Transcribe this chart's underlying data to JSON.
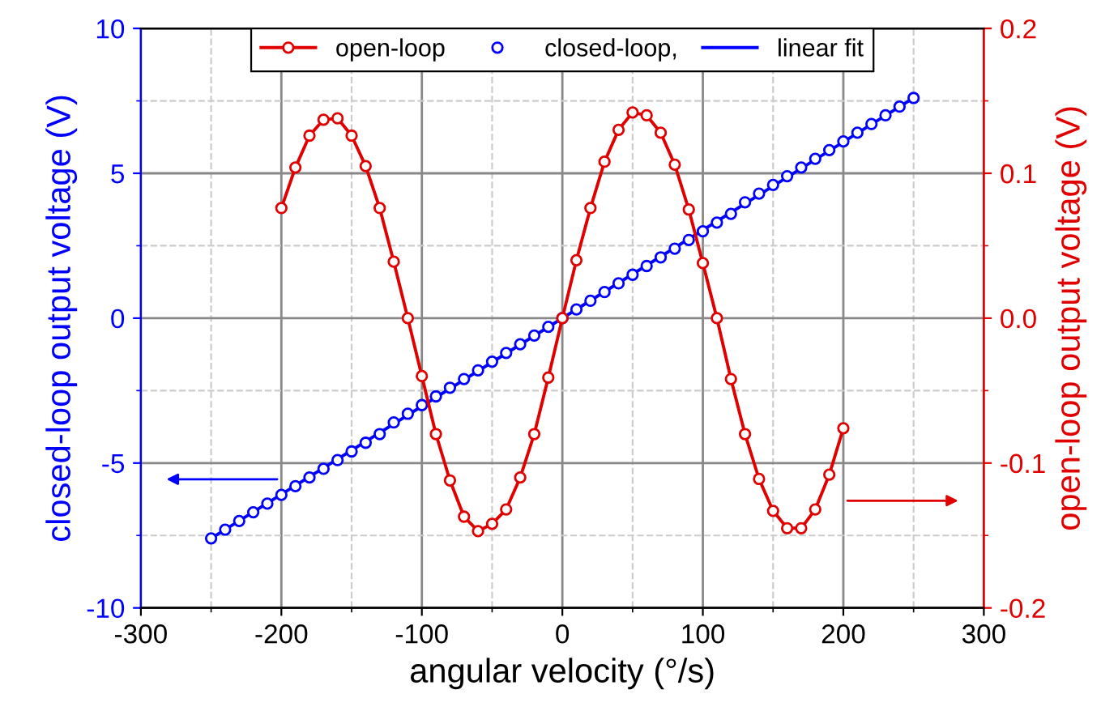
{
  "chart_data": {
    "type": "line",
    "xlabel": "angular velocity (°/s)",
    "ylabel": "closed-loop output voltage (V)",
    "y2label": "open-loop output voltage (V)",
    "xlim": [
      -300,
      300
    ],
    "xticks": [
      -300,
      -200,
      -100,
      0,
      100,
      200,
      300
    ],
    "ylim": [
      -10,
      10
    ],
    "yticks": [
      -10,
      -5,
      0,
      5,
      10
    ],
    "y2lim": [
      -0.2,
      0.2
    ],
    "y2ticks": [
      {
        "value": -0.2,
        "label": "-0.2"
      },
      {
        "value": -0.1,
        "label": "-0.1"
      },
      {
        "value": 0,
        "label": "0.0"
      },
      {
        "value": 0.1,
        "label": "0.1"
      },
      {
        "value": 0.2,
        "label": "0.2"
      }
    ],
    "grid": true,
    "legend": "top",
    "series": [
      {
        "name": "open-loop",
        "axis": "y2",
        "color": "#e00000",
        "marker": "circle",
        "x": [
          -200,
          -190,
          -180,
          -170,
          -160,
          -150,
          -140,
          -130,
          -120,
          -110,
          -100,
          -90,
          -80,
          -70,
          -60,
          -50,
          -40,
          -30,
          -20,
          -10,
          0,
          10,
          20,
          30,
          40,
          50,
          60,
          70,
          80,
          90,
          100,
          110,
          120,
          130,
          140,
          150,
          160,
          170,
          180,
          190,
          200
        ],
        "values": [
          0.076,
          0.104,
          0.126,
          0.137,
          0.138,
          0.126,
          0.105,
          0.076,
          0.039,
          0.0,
          -0.04,
          -0.08,
          -0.112,
          -0.137,
          -0.147,
          -0.142,
          -0.132,
          -0.11,
          -0.08,
          -0.041,
          0.0,
          0.04,
          0.076,
          0.108,
          0.13,
          0.142,
          0.14,
          0.128,
          0.106,
          0.075,
          0.038,
          0.0,
          -0.042,
          -0.08,
          -0.111,
          -0.133,
          -0.145,
          -0.145,
          -0.132,
          -0.108,
          -0.076
        ]
      },
      {
        "name": "closed-loop,",
        "type": "scatter",
        "color": "#0000ff",
        "marker": "circle",
        "x": [
          -250,
          -240,
          -230,
          -220,
          -210,
          -200,
          -190,
          -180,
          -170,
          -160,
          -150,
          -140,
          -130,
          -120,
          -110,
          -100,
          -90,
          -80,
          -70,
          -60,
          -50,
          -40,
          -30,
          -20,
          -10,
          0,
          10,
          20,
          30,
          40,
          50,
          60,
          70,
          80,
          90,
          100,
          110,
          120,
          130,
          140,
          150,
          160,
          170,
          180,
          190,
          200,
          210,
          220,
          230,
          240,
          250
        ],
        "values": [
          -7.6,
          -7.3,
          -7.0,
          -6.7,
          -6.4,
          -6.1,
          -5.8,
          -5.5,
          -5.2,
          -4.9,
          -4.6,
          -4.3,
          -4.0,
          -3.6,
          -3.3,
          -3.0,
          -2.7,
          -2.4,
          -2.1,
          -1.8,
          -1.5,
          -1.2,
          -0.9,
          -0.6,
          -0.3,
          0.0,
          0.3,
          0.6,
          0.9,
          1.2,
          1.5,
          1.8,
          2.1,
          2.4,
          2.7,
          3.0,
          3.3,
          3.6,
          4.0,
          4.3,
          4.6,
          4.9,
          5.2,
          5.5,
          5.8,
          6.1,
          6.4,
          6.7,
          7.0,
          7.3,
          7.6
        ]
      },
      {
        "name": "linear fit",
        "color": "#0000ff",
        "marker": "none",
        "x": [
          -250,
          250
        ],
        "values": [
          -7.6,
          7.6
        ]
      }
    ]
  }
}
